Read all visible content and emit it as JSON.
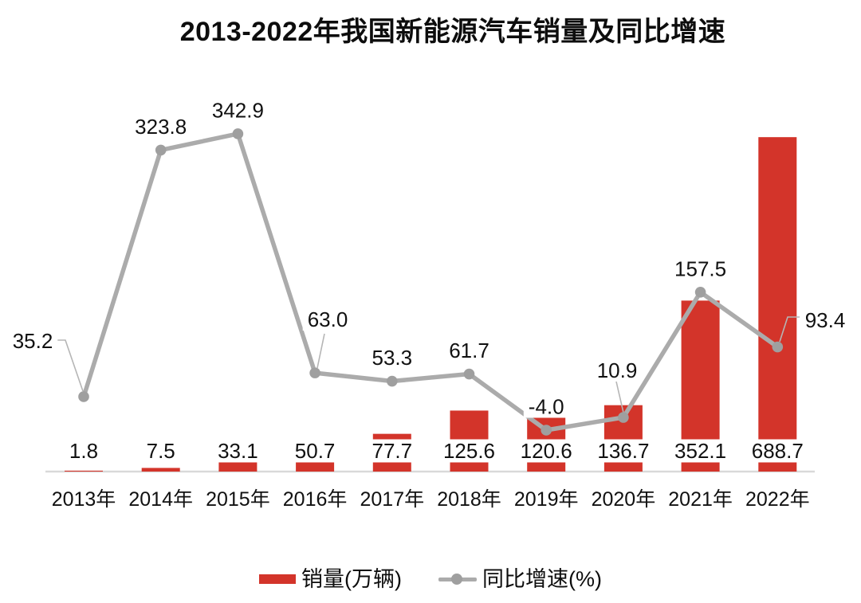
{
  "title": "2013-2022年我国新能源汽车销量及同比增速",
  "legend": {
    "items": [
      {
        "label": "销量(万辆)",
        "swatch": "bar",
        "color": "#d3342a"
      },
      {
        "label": "同比增速(%)",
        "swatch": "line-dot",
        "color": "#ababab"
      }
    ],
    "position": "bottom"
  },
  "chart_data": {
    "type": "combo-bar-line",
    "title": "2013-2022年我国新能源汽车销量及同比增速",
    "categories": [
      "2013年",
      "2014年",
      "2015年",
      "2016年",
      "2017年",
      "2018年",
      "2019年",
      "2020年",
      "2021年",
      "2022年"
    ],
    "series": [
      {
        "name": "销量(万辆)",
        "type": "bar",
        "color": "#d3342a",
        "values": [
          1.8,
          7.5,
          33.1,
          50.7,
          77.7,
          125.6,
          120.6,
          136.7,
          352.1,
          688.7
        ]
      },
      {
        "name": "同比增速(%)",
        "type": "line",
        "color": "#ababab",
        "marker_color": "#9f9f9f",
        "values": [
          35.2,
          323.8,
          342.9,
          63.0,
          53.3,
          61.7,
          -4.0,
          10.9,
          157.5,
          93.4
        ]
      }
    ],
    "value_labels": "all-one-decimal",
    "label_text_color": "#111111",
    "label_background": "#ffffff",
    "leader_line_color": "#b5b5b5",
    "baseline_color": "#d9d9d9",
    "grid": false,
    "y_axes_visible": false,
    "legend_position": "bottom"
  }
}
